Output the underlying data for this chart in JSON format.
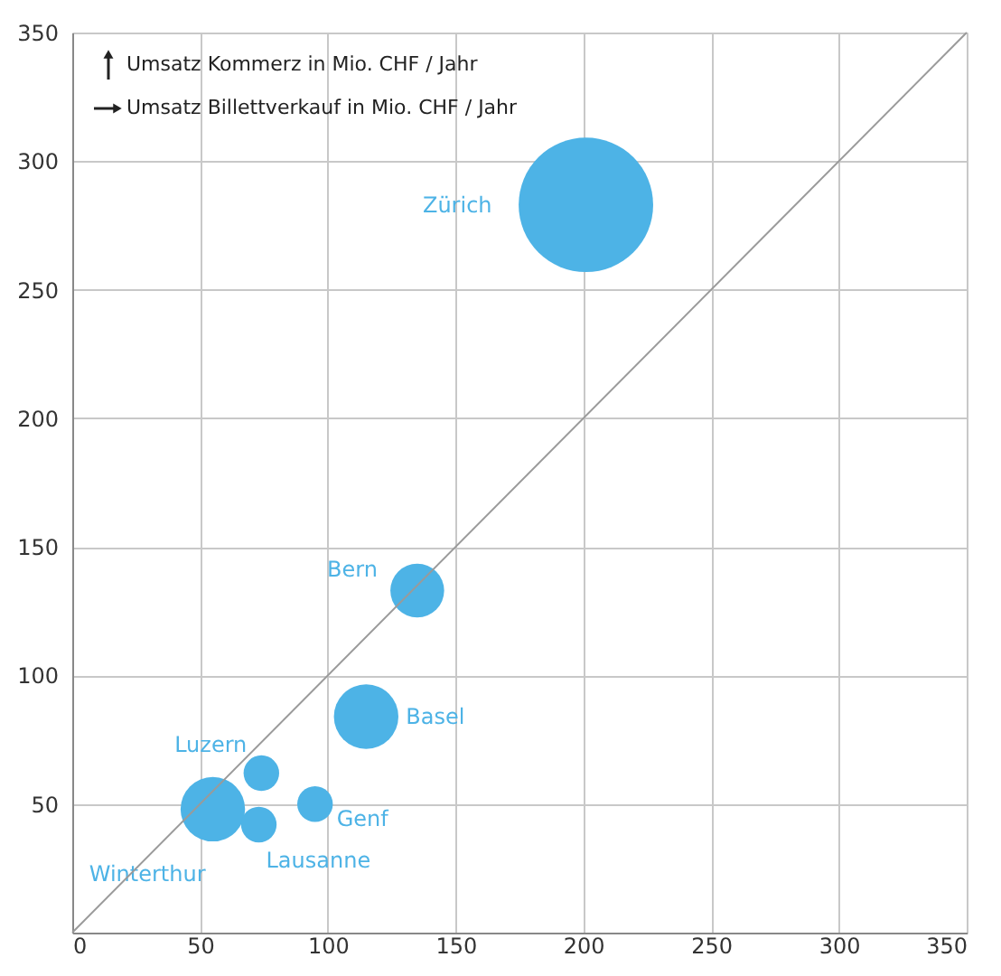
{
  "chart_data": {
    "type": "bubble",
    "xlabel": "Umsatz Billettverkauf in Mio. CHF / Jahr",
    "ylabel": "Umsatz Kommerz in Mio. CHF / Jahr",
    "series": [
      {
        "name": "Zürich",
        "color": "#4db3e6",
        "x": [
          201
        ],
        "values": [
          283
        ],
        "sizes": [
          1
        ]
      },
      {
        "name": "Bern",
        "color": "#4db3e6",
        "x": [
          135
        ],
        "values": [
          133
        ],
        "sizes": [
          0.16
        ]
      },
      {
        "name": "Basel",
        "color": "#4db3e6",
        "x": [
          115
        ],
        "values": [
          84
        ],
        "sizes": [
          0.23
        ]
      },
      {
        "name": "Luzern",
        "color": "#4db3e6",
        "x": [
          74
        ],
        "values": [
          62
        ],
        "sizes": [
          0.07
        ]
      },
      {
        "name": "Winterthur",
        "color": "#4db3e6",
        "x": [
          55
        ],
        "values": [
          48
        ],
        "sizes": [
          0.23
        ]
      },
      {
        "name": "Genf",
        "color": "#4db3e6",
        "x": [
          95
        ],
        "values": [
          50
        ],
        "sizes": [
          0.07
        ]
      },
      {
        "name": "Lausanne",
        "color": "#4db3e6",
        "x": [
          73
        ],
        "values": [
          42
        ],
        "sizes": [
          0.07
        ]
      },
      {
        "type": "line",
        "color": "#9a9a9a",
        "x": [
          0,
          350
        ],
        "values": [
          0,
          350
        ]
      }
    ],
    "xlim": [
      0,
      350
    ],
    "ylim": [
      0,
      350
    ],
    "xticks": [
      0,
      50,
      100,
      150,
      200,
      250,
      300,
      350
    ],
    "yticks": [
      {
        "value": 0,
        "label": null
      },
      50,
      100,
      150,
      200,
      250,
      300,
      350
    ],
    "grid": true
  }
}
